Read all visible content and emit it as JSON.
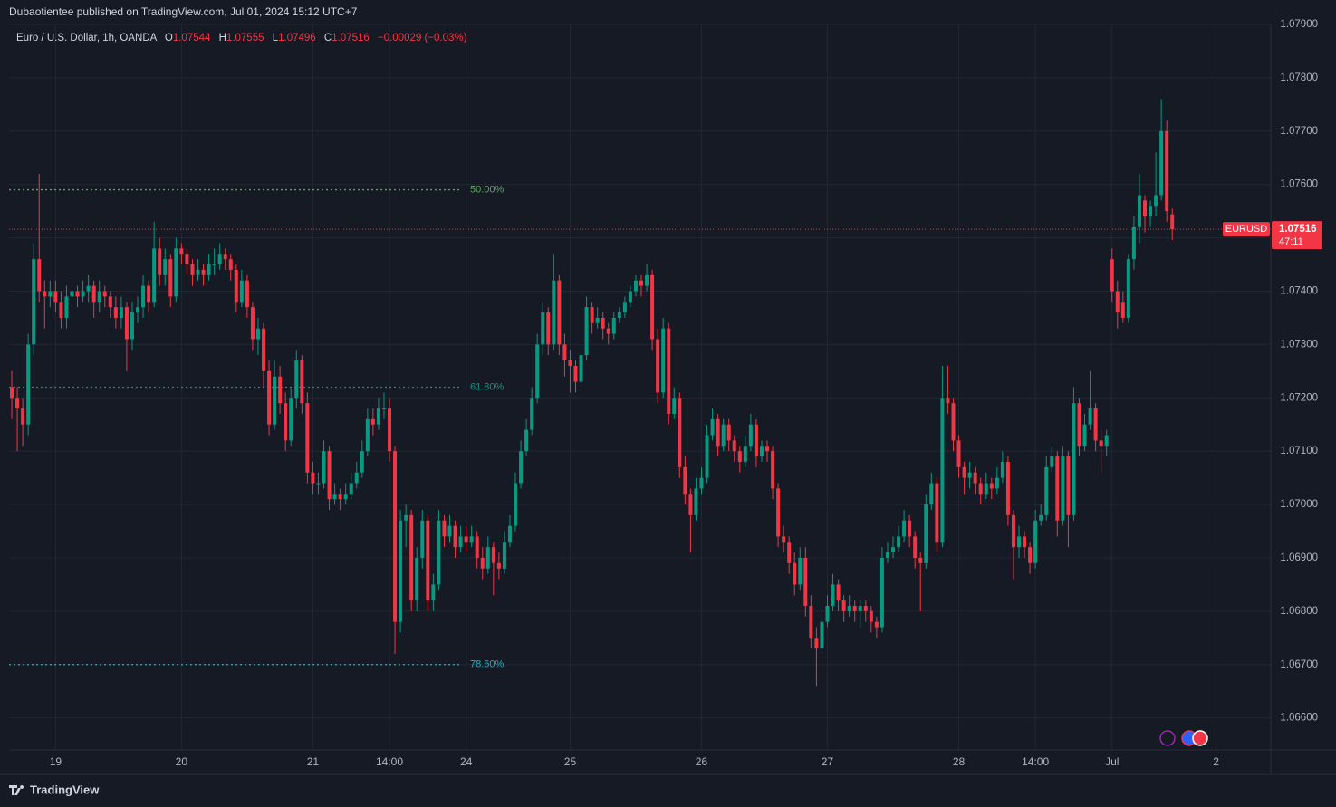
{
  "header": "Dubaotientee published on TradingView.com, Jul 01, 2024 15:12 UTC+7",
  "footer": "TradingView",
  "chart_data": {
    "type": "candlestick",
    "symbol_title": "Euro / U.S. Dollar, 1h, OANDA",
    "ohlc_keys": [
      "O",
      "H",
      "L",
      "C"
    ],
    "change": "−0.00029 (−0.03%)",
    "symbol": "EURUSD",
    "countdown": "47:11",
    "up_color": "#089981",
    "down_color": "#f23645",
    "grid": true,
    "ylim": [
      1.0654,
      1.079
    ],
    "yticks": [
      {
        "value": 1.066,
        "label": "1.06600"
      },
      {
        "value": 1.067,
        "label": "1.06700"
      },
      {
        "value": 1.068,
        "label": "1.06800"
      },
      {
        "value": 1.069,
        "label": "1.06900"
      },
      {
        "value": 1.07,
        "label": "1.07000"
      },
      {
        "value": 1.071,
        "label": "1.07100"
      },
      {
        "value": 1.072,
        "label": "1.07200"
      },
      {
        "value": 1.073,
        "label": "1.07300"
      },
      {
        "value": 1.074,
        "label": "1.07400"
      },
      {
        "value": 1.075,
        "label": "1.07500"
      },
      {
        "value": 1.076,
        "label": "1.07600"
      },
      {
        "value": 1.077,
        "label": "1.07700"
      },
      {
        "value": 1.078,
        "label": "1.07800"
      },
      {
        "value": 1.079,
        "label": "1.07900"
      }
    ],
    "xlim": [
      -0.5,
      230
    ],
    "xticks": [
      {
        "value": 8,
        "label": "19"
      },
      {
        "value": 31,
        "label": "20"
      },
      {
        "value": 55,
        "label": "21"
      },
      {
        "value": 69,
        "label": "14:00"
      },
      {
        "value": 83,
        "label": "24"
      },
      {
        "value": 102,
        "label": "25"
      },
      {
        "value": 126,
        "label": "26"
      },
      {
        "value": 149,
        "label": "27"
      },
      {
        "value": 173,
        "label": "28"
      },
      {
        "value": 187,
        "label": "14:00"
      },
      {
        "value": 201,
        "label": "Jul"
      },
      {
        "value": 220,
        "label": "2"
      }
    ],
    "fib_levels": [
      {
        "label": "50.00%",
        "value": 1.0759,
        "color": "#4caf50"
      },
      {
        "label": "61.80%",
        "value": 1.0722,
        "color": "#089981"
      },
      {
        "label": "78.60%",
        "value": 1.067,
        "color": "#00bcd4"
      }
    ],
    "candles": [
      [
        1.0722,
        1.0725,
        1.0716,
        1.072
      ],
      [
        1.072,
        1.0722,
        1.071,
        1.0718
      ],
      [
        1.0718,
        1.072,
        1.0711,
        1.0715
      ],
      [
        1.0715,
        1.0732,
        1.0713,
        1.073
      ],
      [
        1.073,
        1.0749,
        1.0728,
        1.0746
      ],
      [
        1.0746,
        1.0762,
        1.0738,
        1.074
      ],
      [
        1.074,
        1.0742,
        1.0733,
        1.0739
      ],
      [
        1.0739,
        1.0742,
        1.0737,
        1.074
      ],
      [
        1.074,
        1.0742,
        1.0736,
        1.0738
      ],
      [
        1.0738,
        1.074,
        1.0733,
        1.0735
      ],
      [
        1.0735,
        1.0741,
        1.0733,
        1.0739
      ],
      [
        1.0739,
        1.0742,
        1.0737,
        1.074
      ],
      [
        1.074,
        1.0741,
        1.0737,
        1.0739
      ],
      [
        1.0739,
        1.0742,
        1.0738,
        1.074
      ],
      [
        1.074,
        1.0743,
        1.0738,
        1.0741
      ],
      [
        1.0741,
        1.0742,
        1.0735,
        1.0738
      ],
      [
        1.0738,
        1.0742,
        1.0736,
        1.074
      ],
      [
        1.074,
        1.0741,
        1.0737,
        1.0739
      ],
      [
        1.0739,
        1.074,
        1.0735,
        1.0737
      ],
      [
        1.0737,
        1.0739,
        1.0733,
        1.0735
      ],
      [
        1.0735,
        1.0739,
        1.0733,
        1.0737
      ],
      [
        1.0737,
        1.0738,
        1.0725,
        1.0731
      ],
      [
        1.0731,
        1.0738,
        1.0729,
        1.0736
      ],
      [
        1.0736,
        1.0739,
        1.0734,
        1.0737
      ],
      [
        1.0737,
        1.0743,
        1.0735,
        1.0741
      ],
      [
        1.0741,
        1.0742,
        1.0736,
        1.0738
      ],
      [
        1.0738,
        1.0753,
        1.0737,
        1.0748
      ],
      [
        1.0748,
        1.075,
        1.0741,
        1.0743
      ],
      [
        1.0743,
        1.0748,
        1.0741,
        1.0746
      ],
      [
        1.0746,
        1.0747,
        1.0737,
        1.0739
      ],
      [
        1.0739,
        1.075,
        1.0738,
        1.0748
      ],
      [
        1.0748,
        1.0749,
        1.0745,
        1.0747
      ],
      [
        1.0747,
        1.0748,
        1.0743,
        1.0745
      ],
      [
        1.0745,
        1.0746,
        1.0741,
        1.0743
      ],
      [
        1.0743,
        1.0746,
        1.0742,
        1.0744
      ],
      [
        1.0744,
        1.0745,
        1.0741,
        1.0743
      ],
      [
        1.0743,
        1.0747,
        1.0742,
        1.0745
      ],
      [
        1.0745,
        1.0748,
        1.0743,
        1.0745
      ],
      [
        1.0745,
        1.0749,
        1.0744,
        1.0747
      ],
      [
        1.0747,
        1.0748,
        1.0744,
        1.0746
      ],
      [
        1.0746,
        1.0747,
        1.0742,
        1.0744
      ],
      [
        1.0744,
        1.0745,
        1.0736,
        1.0738
      ],
      [
        1.0738,
        1.0744,
        1.0737,
        1.0742
      ],
      [
        1.0742,
        1.0743,
        1.0735,
        1.0737
      ],
      [
        1.0737,
        1.0738,
        1.0729,
        1.0731
      ],
      [
        1.0731,
        1.0735,
        1.0728,
        1.0733
      ],
      [
        1.0733,
        1.0734,
        1.0722,
        1.0725
      ],
      [
        1.0725,
        1.0727,
        1.0713,
        1.0715
      ],
      [
        1.0715,
        1.0727,
        1.0714,
        1.0724
      ],
      [
        1.0724,
        1.0726,
        1.0717,
        1.0719
      ],
      [
        1.0719,
        1.0721,
        1.071,
        1.0712
      ],
      [
        1.0712,
        1.0722,
        1.0711,
        1.072
      ],
      [
        1.072,
        1.0729,
        1.0718,
        1.0727
      ],
      [
        1.0727,
        1.0728,
        1.0717,
        1.0719
      ],
      [
        1.0719,
        1.0721,
        1.0704,
        1.0706
      ],
      [
        1.0706,
        1.0708,
        1.0702,
        1.0704
      ],
      [
        1.0704,
        1.0706,
        1.0702,
        1.0704
      ],
      [
        1.0704,
        1.0712,
        1.0703,
        1.071
      ],
      [
        1.071,
        1.0711,
        1.0699,
        1.0701
      ],
      [
        1.0701,
        1.0704,
        1.07,
        1.0702
      ],
      [
        1.0702,
        1.0703,
        1.0699,
        1.0701
      ],
      [
        1.0701,
        1.0704,
        1.07,
        1.0702
      ],
      [
        1.0702,
        1.0706,
        1.0701,
        1.0704
      ],
      [
        1.0704,
        1.0708,
        1.0703,
        1.0706
      ],
      [
        1.0706,
        1.0712,
        1.0705,
        1.071
      ],
      [
        1.071,
        1.0718,
        1.0709,
        1.0716
      ],
      [
        1.0716,
        1.0718,
        1.0713,
        1.0715
      ],
      [
        1.0715,
        1.072,
        1.0714,
        1.0718
      ],
      [
        1.0718,
        1.0721,
        1.0716,
        1.0718
      ],
      [
        1.0718,
        1.072,
        1.0708,
        1.071
      ],
      [
        1.071,
        1.0711,
        1.0672,
        1.0678
      ],
      [
        1.0678,
        1.0699,
        1.0676,
        1.0697
      ],
      [
        1.0697,
        1.07,
        1.0692,
        1.0698
      ],
      [
        1.0698,
        1.0699,
        1.068,
        1.0682
      ],
      [
        1.0682,
        1.0692,
        1.068,
        1.069
      ],
      [
        1.069,
        1.0699,
        1.0688,
        1.0697
      ],
      [
        1.0697,
        1.0698,
        1.068,
        1.0682
      ],
      [
        1.0682,
        1.0687,
        1.068,
        1.0685
      ],
      [
        1.0685,
        1.0699,
        1.0684,
        1.0697
      ],
      [
        1.0697,
        1.0698,
        1.0692,
        1.0694
      ],
      [
        1.0694,
        1.0698,
        1.0693,
        1.0696
      ],
      [
        1.0696,
        1.0697,
        1.069,
        1.0692
      ],
      [
        1.0692,
        1.0696,
        1.0691,
        1.0694
      ],
      [
        1.0694,
        1.0696,
        1.0691,
        1.0693
      ],
      [
        1.0693,
        1.0696,
        1.0692,
        1.0694
      ],
      [
        1.0694,
        1.0695,
        1.0688,
        1.069
      ],
      [
        1.069,
        1.0692,
        1.0686,
        1.0688
      ],
      [
        1.0688,
        1.0694,
        1.0687,
        1.0692
      ],
      [
        1.0692,
        1.0693,
        1.0683,
        1.0689
      ],
      [
        1.0689,
        1.0691,
        1.0686,
        1.0688
      ],
      [
        1.0688,
        1.0695,
        1.0687,
        1.0693
      ],
      [
        1.0693,
        1.0698,
        1.0692,
        1.0696
      ],
      [
        1.0696,
        1.0706,
        1.0695,
        1.0704
      ],
      [
        1.0704,
        1.0712,
        1.0703,
        1.071
      ],
      [
        1.071,
        1.0716,
        1.0709,
        1.0714
      ],
      [
        1.0714,
        1.0722,
        1.0713,
        1.072
      ],
      [
        1.072,
        1.0732,
        1.0719,
        1.073
      ],
      [
        1.073,
        1.0738,
        1.0728,
        1.0736
      ],
      [
        1.0736,
        1.0737,
        1.0728,
        1.073
      ],
      [
        1.073,
        1.0747,
        1.0729,
        1.0742
      ],
      [
        1.0742,
        1.0743,
        1.0728,
        1.073
      ],
      [
        1.073,
        1.0732,
        1.0724,
        1.0727
      ],
      [
        1.0727,
        1.0729,
        1.0721,
        1.0726
      ],
      [
        1.0726,
        1.0727,
        1.0721,
        1.0723
      ],
      [
        1.0723,
        1.073,
        1.0722,
        1.0728
      ],
      [
        1.0728,
        1.0739,
        1.0727,
        1.0737
      ],
      [
        1.0737,
        1.0738,
        1.0732,
        1.0734
      ],
      [
        1.0734,
        1.0737,
        1.0733,
        1.0735
      ],
      [
        1.0735,
        1.0736,
        1.0731,
        1.0733
      ],
      [
        1.0733,
        1.0734,
        1.073,
        1.0732
      ],
      [
        1.0732,
        1.0736,
        1.0731,
        1.0735
      ],
      [
        1.0735,
        1.0737,
        1.0734,
        1.0736
      ],
      [
        1.0736,
        1.0739,
        1.0735,
        1.0738
      ],
      [
        1.0738,
        1.0741,
        1.0737,
        1.074
      ],
      [
        1.074,
        1.0743,
        1.0739,
        1.0742
      ],
      [
        1.0742,
        1.0743,
        1.0739,
        1.0741
      ],
      [
        1.0741,
        1.0745,
        1.074,
        1.0743
      ],
      [
        1.0743,
        1.0744,
        1.0729,
        1.0731
      ],
      [
        1.0731,
        1.0733,
        1.0719,
        1.0721
      ],
      [
        1.0721,
        1.0735,
        1.072,
        1.0733
      ],
      [
        1.0733,
        1.0734,
        1.0715,
        1.0717
      ],
      [
        1.0717,
        1.0722,
        1.0716,
        1.072
      ],
      [
        1.072,
        1.0721,
        1.0705,
        1.0707
      ],
      [
        1.0707,
        1.0709,
        1.07,
        1.0702
      ],
      [
        1.0702,
        1.0703,
        1.0691,
        1.0698
      ],
      [
        1.0698,
        1.0705,
        1.0697,
        1.0703
      ],
      [
        1.0703,
        1.0707,
        1.0702,
        1.0705
      ],
      [
        1.0705,
        1.0715,
        1.0704,
        1.0713
      ],
      [
        1.0713,
        1.0718,
        1.0712,
        1.0716
      ],
      [
        1.0716,
        1.0717,
        1.0709,
        1.0711
      ],
      [
        1.0711,
        1.0716,
        1.071,
        1.0715
      ],
      [
        1.0715,
        1.0716,
        1.071,
        1.0712
      ],
      [
        1.0712,
        1.0713,
        1.0708,
        1.071
      ],
      [
        1.071,
        1.0711,
        1.0706,
        1.0708
      ],
      [
        1.0708,
        1.0713,
        1.0707,
        1.0711
      ],
      [
        1.0711,
        1.0717,
        1.071,
        1.0715
      ],
      [
        1.0715,
        1.0716,
        1.0707,
        1.0709
      ],
      [
        1.0709,
        1.0712,
        1.0708,
        1.0711
      ],
      [
        1.0711,
        1.0712,
        1.0708,
        1.071
      ],
      [
        1.071,
        1.0711,
        1.0701,
        1.0703
      ],
      [
        1.0703,
        1.0704,
        1.0692,
        1.0694
      ],
      [
        1.0694,
        1.0696,
        1.0691,
        1.0693
      ],
      [
        1.0693,
        1.0694,
        1.0687,
        1.0689
      ],
      [
        1.0689,
        1.0691,
        1.0683,
        1.0685
      ],
      [
        1.0685,
        1.0692,
        1.0684,
        1.069
      ],
      [
        1.069,
        1.0692,
        1.0679,
        1.0681
      ],
      [
        1.0681,
        1.0683,
        1.0673,
        1.0675
      ],
      [
        1.0675,
        1.0677,
        1.0666,
        1.0673
      ],
      [
        1.0673,
        1.068,
        1.0672,
        1.0678
      ],
      [
        1.0678,
        1.0683,
        1.0677,
        1.0681
      ],
      [
        1.0681,
        1.0687,
        1.068,
        1.0685
      ],
      [
        1.0685,
        1.0686,
        1.068,
        1.0682
      ],
      [
        1.0682,
        1.0683,
        1.0678,
        1.068
      ],
      [
        1.068,
        1.0683,
        1.0679,
        1.0681
      ],
      [
        1.0681,
        1.0682,
        1.0678,
        1.068
      ],
      [
        1.068,
        1.0682,
        1.0677,
        1.0681
      ],
      [
        1.0681,
        1.0682,
        1.0678,
        1.068
      ],
      [
        1.068,
        1.0681,
        1.0676,
        1.0678
      ],
      [
        1.0678,
        1.0679,
        1.0675,
        1.0677
      ],
      [
        1.0677,
        1.0692,
        1.0676,
        1.069
      ],
      [
        1.069,
        1.0693,
        1.0689,
        1.0691
      ],
      [
        1.0691,
        1.0694,
        1.069,
        1.0692
      ],
      [
        1.0692,
        1.0696,
        1.0691,
        1.0694
      ],
      [
        1.0694,
        1.0699,
        1.0693,
        1.0697
      ],
      [
        1.0697,
        1.0698,
        1.0692,
        1.0694
      ],
      [
        1.0694,
        1.0695,
        1.0688,
        1.069
      ],
      [
        1.069,
        1.0691,
        1.068,
        1.0689
      ],
      [
        1.0689,
        1.0702,
        1.0688,
        1.07
      ],
      [
        1.07,
        1.0706,
        1.0699,
        1.0704
      ],
      [
        1.0704,
        1.0705,
        1.0691,
        1.0693
      ],
      [
        1.0693,
        1.0726,
        1.0692,
        1.072
      ],
      [
        1.072,
        1.0726,
        1.0717,
        1.0719
      ],
      [
        1.0719,
        1.072,
        1.071,
        1.0712
      ],
      [
        1.0712,
        1.0713,
        1.0705,
        1.0707
      ],
      [
        1.0707,
        1.0708,
        1.0702,
        1.0705
      ],
      [
        1.0705,
        1.0708,
        1.0703,
        1.0706
      ],
      [
        1.0706,
        1.0707,
        1.0702,
        1.0704
      ],
      [
        1.0704,
        1.0705,
        1.07,
        1.0702
      ],
      [
        1.0702,
        1.0706,
        1.0701,
        1.0704
      ],
      [
        1.0704,
        1.0705,
        1.0701,
        1.0703
      ],
      [
        1.0703,
        1.0707,
        1.0702,
        1.0705
      ],
      [
        1.0705,
        1.071,
        1.0704,
        1.0708
      ],
      [
        1.0708,
        1.0709,
        1.0696,
        1.0698
      ],
      [
        1.0698,
        1.0699,
        1.0686,
        1.0692
      ],
      [
        1.0692,
        1.0696,
        1.069,
        1.0694
      ],
      [
        1.0694,
        1.0695,
        1.069,
        1.0692
      ],
      [
        1.0692,
        1.0693,
        1.0687,
        1.0689
      ],
      [
        1.0689,
        1.0699,
        1.0688,
        1.0697
      ],
      [
        1.0697,
        1.07,
        1.0696,
        1.0698
      ],
      [
        1.0698,
        1.0709,
        1.0697,
        1.0707
      ],
      [
        1.0707,
        1.0711,
        1.0706,
        1.0709
      ],
      [
        1.0709,
        1.071,
        1.0694,
        1.0697
      ],
      [
        1.0697,
        1.0711,
        1.0696,
        1.0709
      ],
      [
        1.0709,
        1.071,
        1.0692,
        1.0698
      ],
      [
        1.0698,
        1.0722,
        1.0697,
        1.0719
      ],
      [
        1.0719,
        1.072,
        1.0709,
        1.0711
      ],
      [
        1.0711,
        1.0717,
        1.071,
        1.0715
      ],
      [
        1.0715,
        1.0725,
        1.0714,
        1.0718
      ],
      [
        1.0718,
        1.0719,
        1.071,
        1.0712
      ],
      [
        1.0712,
        1.0714,
        1.0706,
        1.0711
      ],
      [
        1.0711,
        1.0714,
        1.0709,
        1.0713
      ],
      [
        1.0746,
        1.0748,
        1.0738,
        1.074
      ],
      [
        1.074,
        1.0742,
        1.0733,
        1.0736
      ],
      [
        1.0738,
        1.074,
        1.0734,
        1.0735
      ],
      [
        1.0735,
        1.0747,
        1.0734,
        1.0746
      ],
      [
        1.0746,
        1.0754,
        1.0744,
        1.0752
      ],
      [
        1.0752,
        1.0762,
        1.0749,
        1.0758
      ],
      [
        1.0757,
        1.0758,
        1.0751,
        1.0754
      ],
      [
        1.0754,
        1.0757,
        1.0752,
        1.0756
      ],
      [
        1.0756,
        1.0766,
        1.0754,
        1.0758
      ],
      [
        1.0758,
        1.0776,
        1.0757,
        1.077
      ],
      [
        1.077,
        1.0772,
        1.0753,
        1.0755
      ],
      [
        1.07544,
        1.07555,
        1.07496,
        1.07516
      ]
    ]
  }
}
